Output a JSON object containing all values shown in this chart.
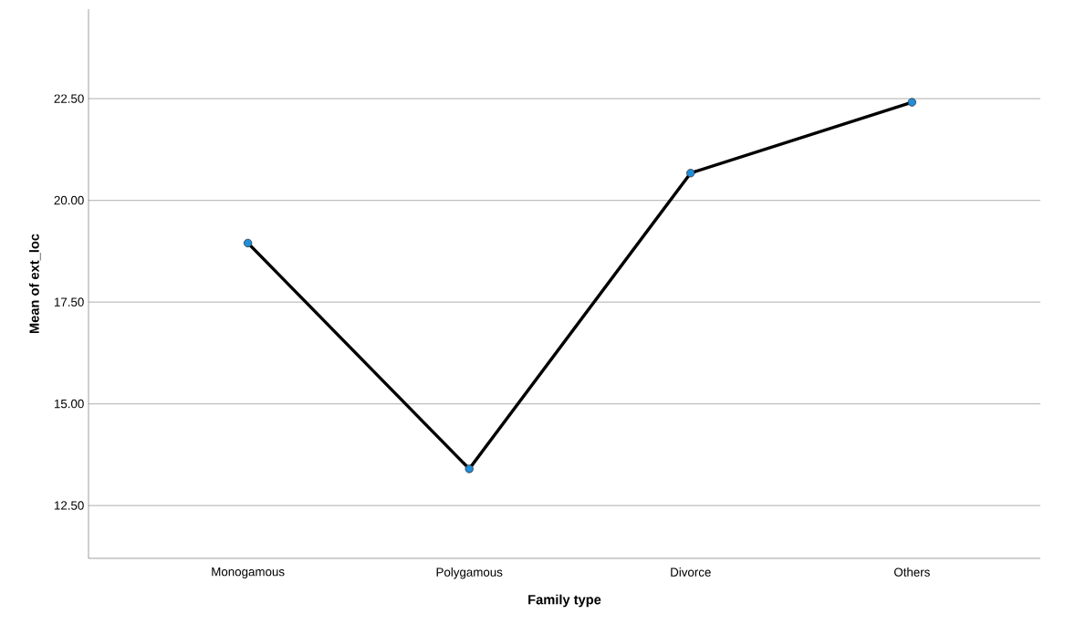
{
  "chart_data": {
    "type": "line",
    "xlabel": "Family type",
    "ylabel": "Mean of ext_loc",
    "categories": [
      "Monogamous",
      "Polygamous",
      "Divorce",
      "Others"
    ],
    "series": [
      {
        "color": "#000000",
        "values": [
          18.95,
          13.4,
          20.67,
          22.41
        ]
      }
    ],
    "ylim": [
      11.2,
      24.7
    ],
    "yticks": [
      {
        "value": 12.5,
        "label": "12.50"
      },
      {
        "value": 15,
        "label": "15.00"
      },
      {
        "value": 17.5,
        "label": "17.50"
      },
      {
        "value": 20,
        "label": "20.00"
      },
      {
        "value": 22.5,
        "label": "22.50"
      }
    ],
    "grid": "y",
    "marker": "circle",
    "line_style": "solid"
  }
}
